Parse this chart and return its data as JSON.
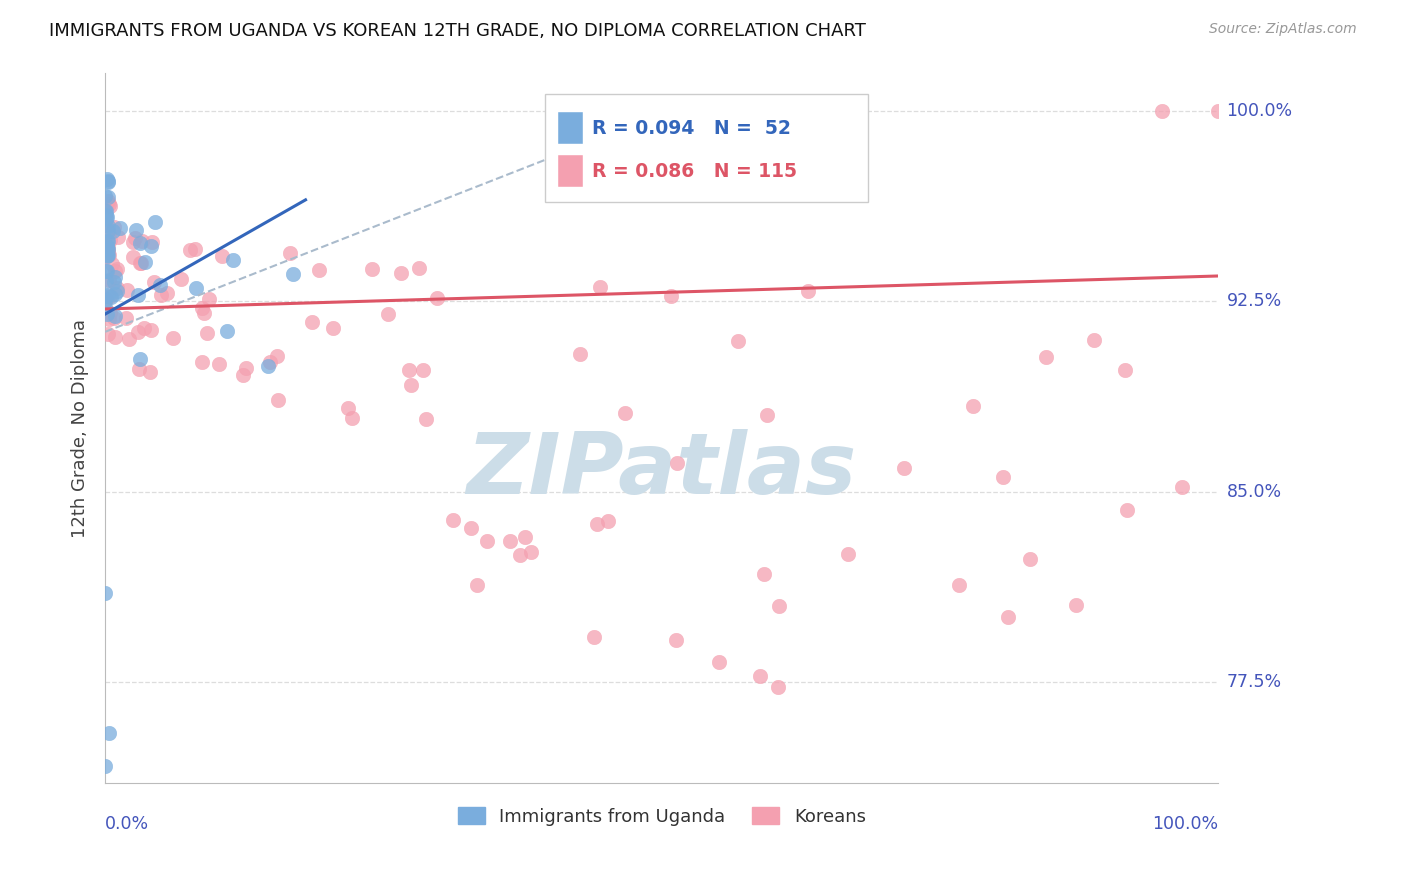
{
  "title": "IMMIGRANTS FROM UGANDA VS KOREAN 12TH GRADE, NO DIPLOMA CORRELATION CHART",
  "source": "Source: ZipAtlas.com",
  "ylabel": "12th Grade, No Diploma",
  "xlim": [
    0.0,
    1.0
  ],
  "ylim": [
    0.735,
    1.015
  ],
  "ytick_vals": [
    0.775,
    0.85,
    0.925,
    1.0
  ],
  "ytick_labels": [
    "77.5%",
    "85.0%",
    "92.5%",
    "100.0%"
  ],
  "legend_uganda": "Immigrants from Uganda",
  "legend_korean": "Koreans",
  "R_uganda": 0.094,
  "N_uganda": 52,
  "R_korean": 0.086,
  "N_korean": 115,
  "color_uganda": "#7aaddd",
  "color_korean": "#f4a0b0",
  "trendline_uganda_color": "#3366bb",
  "trendline_korean_color": "#dd5566",
  "trendline_dashed_color": "#aabbcc",
  "background_color": "#ffffff",
  "watermark_color": "#ccdde8",
  "grid_color": "#dddddd",
  "label_color": "#4455bb",
  "title_color": "#111111",
  "source_color": "#999999",
  "ylabel_color": "#444444"
}
